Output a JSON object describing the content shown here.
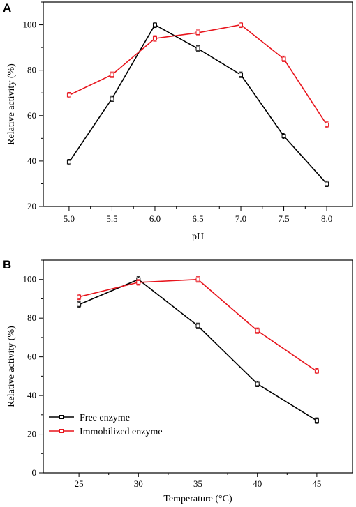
{
  "chart_data": [
    {
      "panel": "A",
      "type": "line",
      "title": "",
      "xlabel": "pH",
      "ylabel": "Relative activity (%)",
      "x": [
        5.0,
        5.5,
        6.0,
        6.5,
        7.0,
        7.5,
        8.0
      ],
      "x_tick_labels": [
        "5.0",
        "5.5",
        "6.0",
        "6.5",
        "7.0",
        "7.5",
        "8.0"
      ],
      "xlim": [
        4.7,
        8.3
      ],
      "ylim": [
        20,
        110
      ],
      "y_ticks": [
        20,
        40,
        60,
        80,
        100
      ],
      "grid": false,
      "series": [
        {
          "color": "#000000",
          "values": [
            39.5,
            67.5,
            100,
            89.5,
            78,
            51,
            30
          ]
        },
        {
          "color": "#e8141c",
          "values": [
            69,
            78,
            94,
            96.5,
            100,
            85,
            56
          ]
        }
      ]
    },
    {
      "panel": "B",
      "type": "line",
      "title": "",
      "xlabel": "Temperature (°C)",
      "ylabel": "Relative activity (%)",
      "x": [
        25,
        30,
        35,
        40,
        45
      ],
      "x_tick_labels": [
        "25",
        "30",
        "35",
        "40",
        "45"
      ],
      "xlim": [
        22,
        48
      ],
      "ylim": [
        0,
        110
      ],
      "y_ticks": [
        0,
        20,
        40,
        60,
        80,
        100
      ],
      "grid": false,
      "legend_position": "bottom-left",
      "series": [
        {
          "name": "Free enzyme",
          "color": "#000000",
          "values": [
            87,
            100,
            76,
            46,
            27
          ]
        },
        {
          "name": "Immobilized enzyme",
          "color": "#e8141c",
          "values": [
            91,
            98.5,
            100,
            73.5,
            52.5
          ]
        }
      ]
    }
  ]
}
